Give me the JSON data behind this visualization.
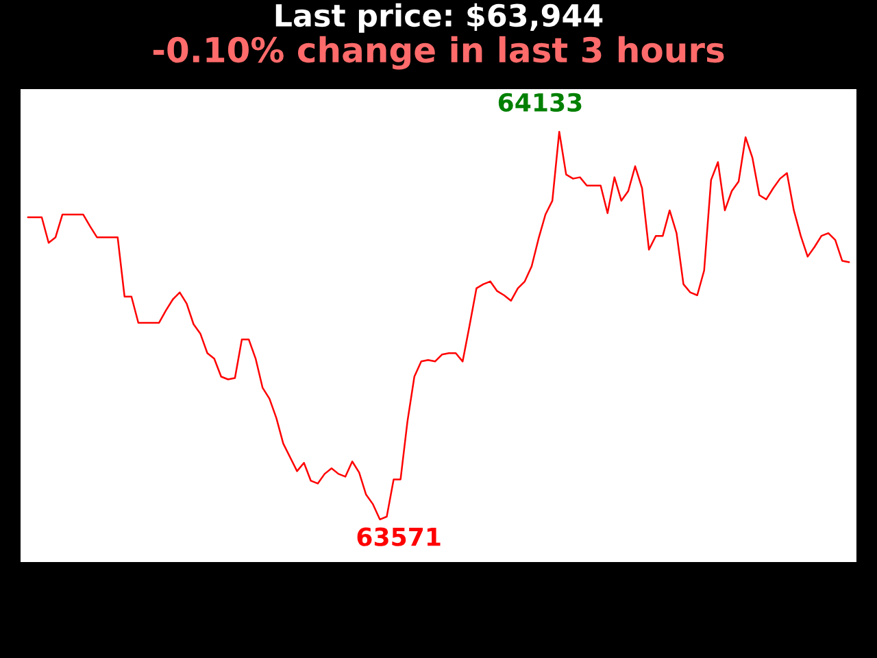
{
  "chart_data": {
    "type": "line",
    "title": "Last price: $63,944",
    "subtitle": "-0.10% change in last 3 hours",
    "categories": [
      null,
      null,
      null,
      null,
      null,
      null,
      null,
      null,
      null,
      null,
      null,
      null,
      null,
      null,
      null,
      null,
      null,
      null,
      null,
      null,
      null,
      null,
      null,
      null,
      null,
      null,
      null,
      null,
      null,
      null,
      null,
      null,
      null,
      null,
      null,
      null,
      null,
      null,
      null,
      null,
      null,
      null,
      null,
      null,
      null,
      null,
      null,
      null,
      null,
      null,
      null,
      null,
      null,
      null,
      null,
      null,
      null,
      null,
      null,
      null,
      null,
      null,
      null,
      null,
      null,
      null,
      null,
      null,
      null,
      null,
      null,
      null,
      null,
      null,
      null,
      null,
      null,
      null,
      null,
      null,
      null,
      null,
      null,
      null,
      null,
      null,
      null,
      null,
      null,
      null,
      null,
      null,
      null,
      null,
      null,
      null,
      null,
      null,
      null,
      null,
      null,
      null,
      null,
      null,
      null,
      null,
      null,
      null,
      null,
      null,
      null,
      null,
      null,
      null,
      null,
      null,
      null,
      null,
      null,
      null
    ],
    "series": [
      {
        "color": "#ff0000",
        "values": [
          64009,
          64009,
          64009,
          63972,
          63980,
          64013,
          64013,
          64013,
          64013,
          63996,
          63980,
          63980,
          63980,
          63980,
          63894,
          63894,
          63856,
          63856,
          63856,
          63856,
          63874,
          63890,
          63900,
          63884,
          63854,
          63840,
          63812,
          63804,
          63778,
          63774,
          63776,
          63832,
          63832,
          63804,
          63762,
          63746,
          63718,
          63681,
          63661,
          63641,
          63653,
          63627,
          63623,
          63637,
          63645,
          63637,
          63633,
          63655,
          63639,
          63607,
          63593,
          63571,
          63575,
          63629,
          63629,
          63713,
          63778,
          63800,
          63802,
          63800,
          63810,
          63812,
          63812,
          63800,
          63852,
          63906,
          63912,
          63916,
          63902,
          63896,
          63888,
          63906,
          63916,
          63938,
          63978,
          64013,
          64033,
          64133,
          64071,
          64065,
          64067,
          64055,
          64055,
          64055,
          64015,
          64067,
          64033,
          64047,
          64083,
          64051,
          63962,
          63982,
          63982,
          64019,
          63986,
          63912,
          63900,
          63896,
          63932,
          64063,
          64089,
          64019,
          64047,
          64061,
          64125,
          64095,
          64041,
          64035,
          64051,
          64065,
          64073,
          64019,
          63982,
          63952,
          63966,
          63982,
          63986,
          63976,
          63946,
          63944
        ],
        "value_labels": [
          null,
          null,
          null,
          null,
          null,
          null,
          null,
          null,
          null,
          null,
          null,
          null,
          null,
          null,
          null,
          null,
          null,
          null,
          null,
          null,
          null,
          null,
          null,
          null,
          null,
          null,
          null,
          null,
          null,
          null,
          null,
          null,
          null,
          null,
          null,
          null,
          null,
          null,
          null,
          null,
          null,
          null,
          null,
          null,
          null,
          null,
          null,
          null,
          null,
          null,
          null,
          "63571",
          null,
          null,
          null,
          null,
          null,
          null,
          null,
          null,
          null,
          null,
          null,
          null,
          null,
          null,
          null,
          null,
          null,
          null,
          null,
          null,
          null,
          null,
          null,
          null,
          null,
          "64133",
          null,
          null,
          null,
          null,
          null,
          null,
          null,
          null,
          null,
          null,
          null,
          null,
          null,
          null,
          null,
          null,
          null,
          null,
          null,
          null,
          null,
          null,
          null,
          null,
          null,
          null,
          null,
          null,
          null,
          null,
          null,
          null,
          null,
          null,
          null,
          null,
          null,
          null,
          null,
          null,
          null,
          null
        ]
      }
    ],
    "tick_labels": false
  }
}
